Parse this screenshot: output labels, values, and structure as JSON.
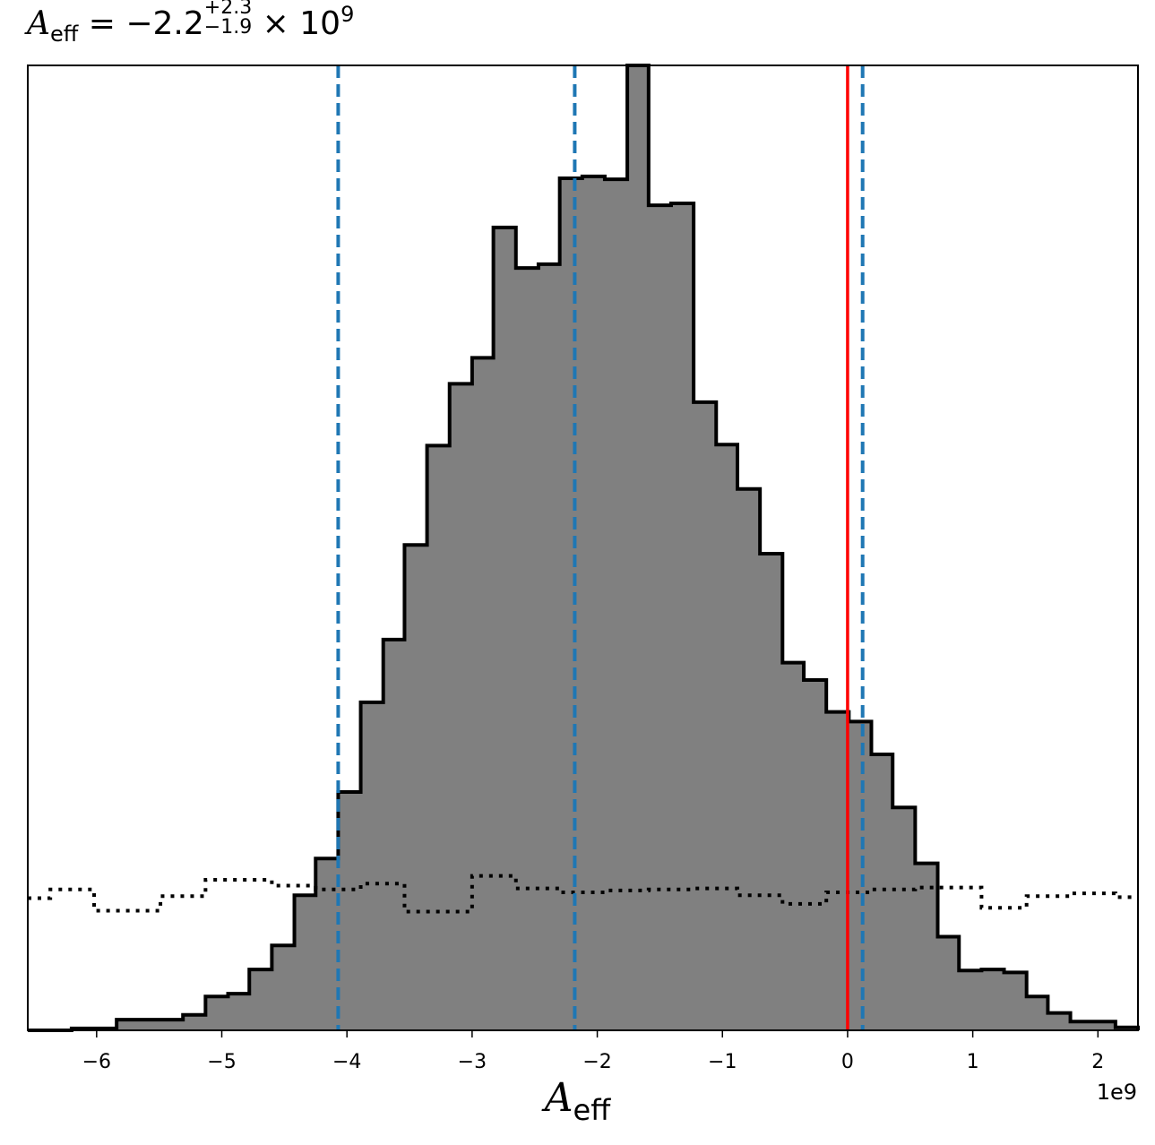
{
  "title": {
    "symbol": "A",
    "subscript": "eff",
    "equals": " = −2.2",
    "upper": "+2.3",
    "lower": "−1.9",
    "times": " × 10",
    "exponent": "9"
  },
  "axis": {
    "xlabel_symbol": "A",
    "xlabel_subscript": "eff",
    "offset_text": "1e9",
    "x_tick_labels": [
      "−6",
      "−5",
      "−4",
      "−3",
      "−2",
      "−1",
      "0",
      "1",
      "2"
    ]
  },
  "chart_data": {
    "type": "histogram",
    "xlim": [
      -6.55,
      2.32
    ],
    "ylim": [
      0,
      1.0
    ],
    "x_ticks": [
      -6,
      -5,
      -4,
      -3,
      -2,
      -1,
      0,
      1,
      2
    ],
    "x_scale": "1e9",
    "y_axis_visible": false,
    "grid": false,
    "colors": {
      "fill": "#808080",
      "edge": "#000000",
      "quantile_lines": "#1f77b4",
      "truth_line": "#ff0000"
    },
    "posterior_histogram": {
      "bin_edges": [
        -6.55,
        -6.37,
        -6.2,
        -6.02,
        -5.84,
        -5.66,
        -5.49,
        -5.31,
        -5.13,
        -4.95,
        -4.78,
        -4.6,
        -4.42,
        -4.25,
        -4.07,
        -3.89,
        -3.71,
        -3.54,
        -3.36,
        -3.18,
        -3.0,
        -2.83,
        -2.65,
        -2.47,
        -2.3,
        -2.12,
        -1.94,
        -1.76,
        -1.59,
        -1.41,
        -1.23,
        -1.05,
        -0.88,
        -0.7,
        -0.52,
        -0.35,
        -0.17,
        0.01,
        0.19,
        0.36,
        0.54,
        0.72,
        0.89,
        1.07,
        1.25,
        1.43,
        1.6,
        1.78,
        1.96,
        2.14,
        2.32
      ],
      "heights": [
        0.0,
        0.0,
        0.002,
        0.002,
        0.011,
        0.011,
        0.011,
        0.016,
        0.035,
        0.038,
        0.063,
        0.088,
        0.14,
        0.178,
        0.247,
        0.34,
        0.405,
        0.503,
        0.606,
        0.67,
        0.697,
        0.832,
        0.79,
        0.794,
        0.883,
        0.885,
        0.882,
        1.0,
        0.855,
        0.857,
        0.651,
        0.607,
        0.561,
        0.494,
        0.381,
        0.363,
        0.33,
        0.32,
        0.286,
        0.231,
        0.173,
        0.097,
        0.062,
        0.063,
        0.06,
        0.035,
        0.018,
        0.009,
        0.009,
        0.003
      ]
    },
    "prior_histogram": {
      "style": "dotted",
      "bin_edges": [
        -6.55,
        -6.37,
        -6.2,
        -6.02,
        -5.84,
        -5.66,
        -5.49,
        -5.31,
        -5.13,
        -4.95,
        -4.78,
        -4.6,
        -4.42,
        -4.25,
        -4.07,
        -3.89,
        -3.71,
        -3.54,
        -3.36,
        -3.18,
        -3.0,
        -2.83,
        -2.65,
        -2.47,
        -2.3,
        -2.12,
        -1.94,
        -1.76,
        -1.59,
        -1.41,
        -1.23,
        -1.05,
        -0.88,
        -0.7,
        -0.52,
        -0.35,
        -0.17,
        0.01,
        0.19,
        0.36,
        0.54,
        0.72,
        0.89,
        1.07,
        1.25,
        1.43,
        1.6,
        1.78,
        1.96,
        2.14,
        2.32
      ],
      "heights": [
        0.137,
        0.146,
        0.146,
        0.124,
        0.124,
        0.124,
        0.139,
        0.139,
        0.156,
        0.156,
        0.156,
        0.15,
        0.15,
        0.146,
        0.146,
        0.152,
        0.152,
        0.123,
        0.123,
        0.123,
        0.16,
        0.16,
        0.147,
        0.147,
        0.143,
        0.143,
        0.145,
        0.145,
        0.146,
        0.146,
        0.147,
        0.147,
        0.14,
        0.14,
        0.131,
        0.131,
        0.143,
        0.143,
        0.146,
        0.146,
        0.148,
        0.148,
        0.148,
        0.127,
        0.127,
        0.139,
        0.139,
        0.142,
        0.142,
        0.138
      ]
    },
    "quantile_lines": [
      -4.07,
      -2.18,
      0.12
    ],
    "truth_line": 0.0
  }
}
